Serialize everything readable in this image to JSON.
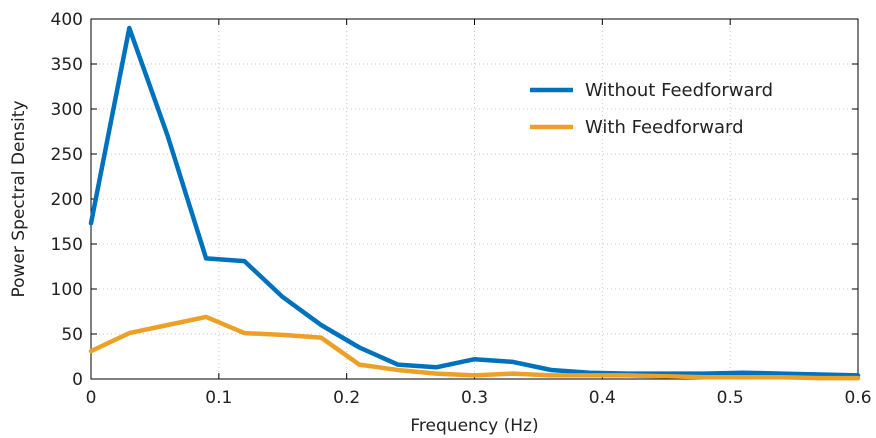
{
  "chart_data": {
    "type": "line",
    "title": "",
    "xlabel": "Frequency (Hz)",
    "ylabel": "Power Spectral Density",
    "xlim": [
      0,
      0.6
    ],
    "ylim": [
      0,
      400
    ],
    "xticks": [
      "0",
      "0.1",
      "0.2",
      "0.3",
      "0.4",
      "0.5",
      "0.6"
    ],
    "yticks": [
      "0",
      "50",
      "100",
      "150",
      "200",
      "250",
      "300",
      "350",
      "400"
    ],
    "grid": true,
    "legend_position": "top-right",
    "x": [
      0,
      0.03,
      0.06,
      0.09,
      0.12,
      0.15,
      0.18,
      0.21,
      0.24,
      0.27,
      0.3,
      0.33,
      0.36,
      0.39,
      0.42,
      0.45,
      0.48,
      0.51,
      0.54,
      0.57,
      0.6
    ],
    "series": [
      {
        "name": "Without Feedforward",
        "color": "#0072BD",
        "values": [
          173,
          390,
          270,
          134,
          131,
          91,
          60,
          35,
          16,
          13,
          22,
          19,
          10,
          7,
          6,
          6,
          6,
          7,
          6,
          5,
          4
        ]
      },
      {
        "name": "With Feedforward",
        "color": "#EDA027",
        "values": [
          31,
          51,
          60,
          69,
          51,
          49,
          46,
          16,
          10,
          6,
          4,
          6,
          4,
          4,
          4,
          3,
          2,
          2,
          2,
          1,
          1
        ]
      }
    ]
  }
}
